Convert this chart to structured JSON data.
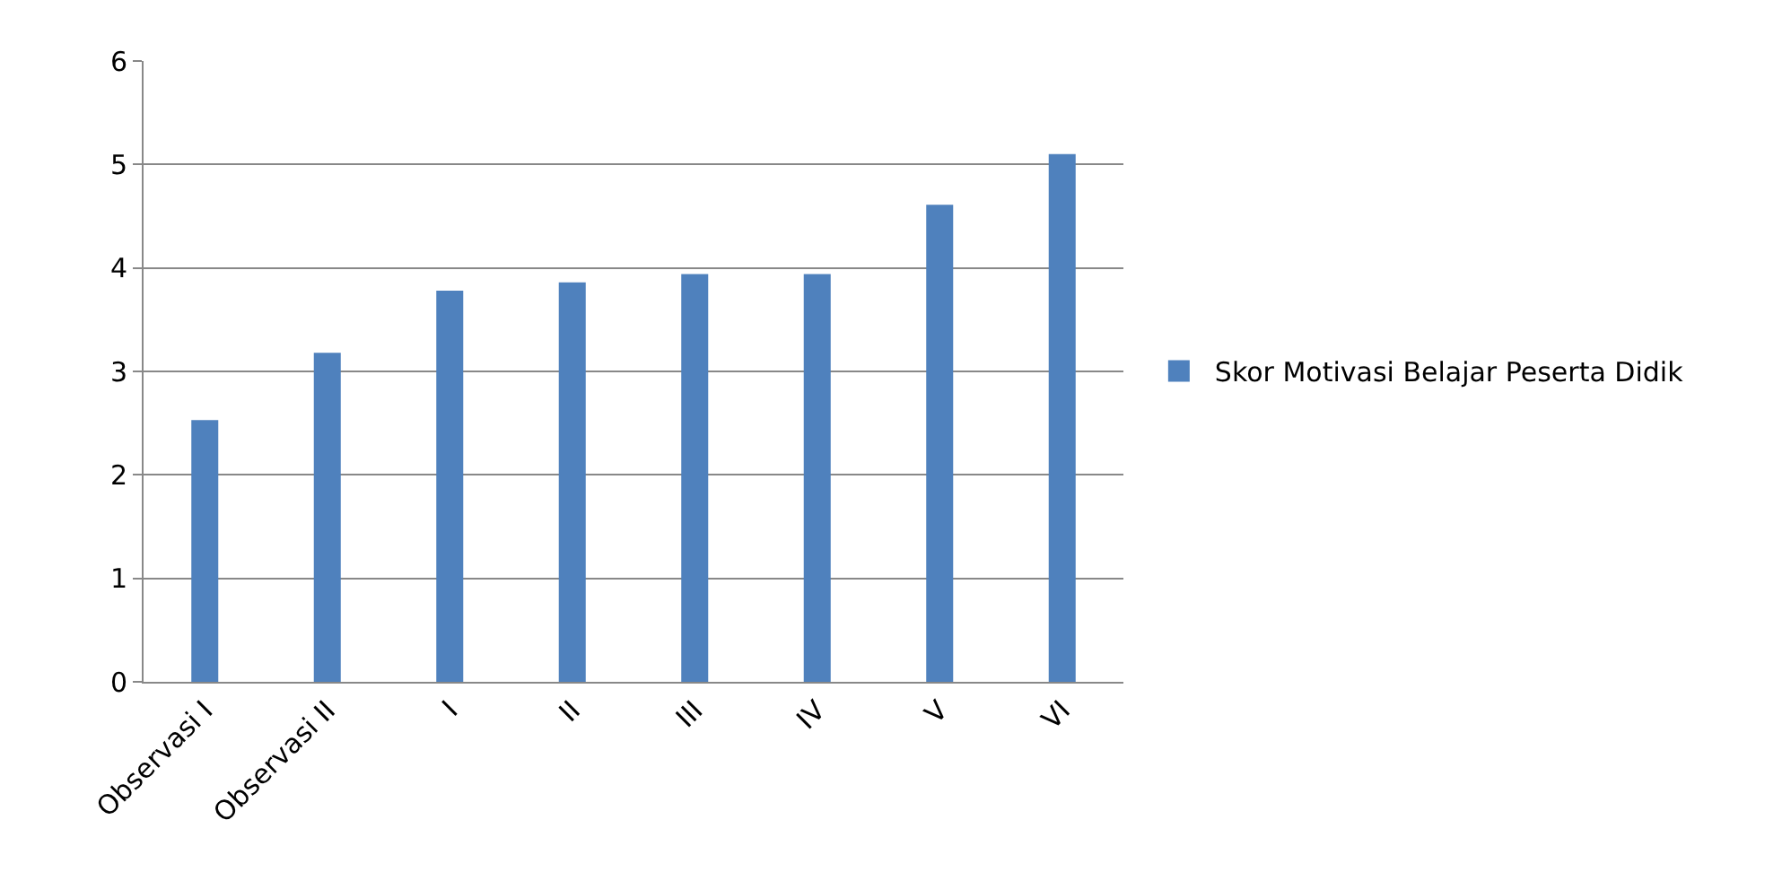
{
  "chart_data": {
    "type": "bar",
    "categories": [
      "Observasi I",
      "Observasi II",
      "I",
      "II",
      "III",
      "IV",
      "V",
      "VI"
    ],
    "series": [
      {
        "name": "Skor Motivasi Belajar Peserta Didik",
        "color": "#4f81bd",
        "values": [
          2.53,
          3.18,
          3.78,
          3.86,
          3.94,
          3.94,
          4.61,
          5.1
        ]
      }
    ],
    "ylim": [
      0,
      6
    ],
    "yticks": [
      0,
      1,
      2,
      3,
      4,
      5,
      6
    ],
    "grid": "y",
    "legend": "right"
  }
}
